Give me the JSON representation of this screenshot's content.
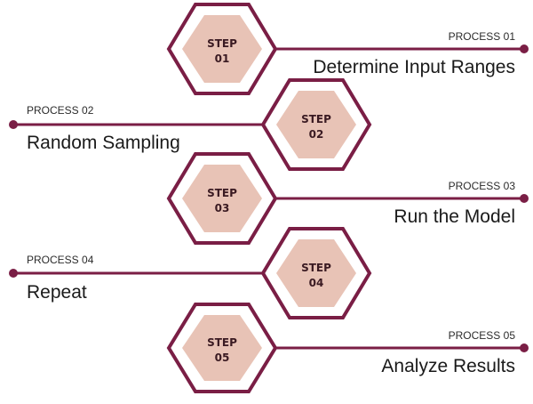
{
  "colors": {
    "line": "#7a1e45",
    "hex_outer_fill": "#ffffff",
    "hex_inner_fill": "#e8c3b6",
    "text": "#1a1a1a"
  },
  "steps": [
    {
      "step_word": "STEP",
      "step_number": "01",
      "process_label": "PROCESS 01",
      "title": "Determine Input Ranges",
      "side": "right"
    },
    {
      "step_word": "STEP",
      "step_number": "02",
      "process_label": "PROCESS 02",
      "title": "Random Sampling",
      "side": "left"
    },
    {
      "step_word": "STEP",
      "step_number": "03",
      "process_label": "PROCESS 03",
      "title": "Run the Model",
      "side": "right"
    },
    {
      "step_word": "STEP",
      "step_number": "04",
      "process_label": "PROCESS 04",
      "title": "Repeat",
      "side": "left"
    },
    {
      "step_word": "STEP",
      "step_number": "05",
      "process_label": "PROCESS 05",
      "title": "Analyze Results",
      "side": "right"
    }
  ]
}
